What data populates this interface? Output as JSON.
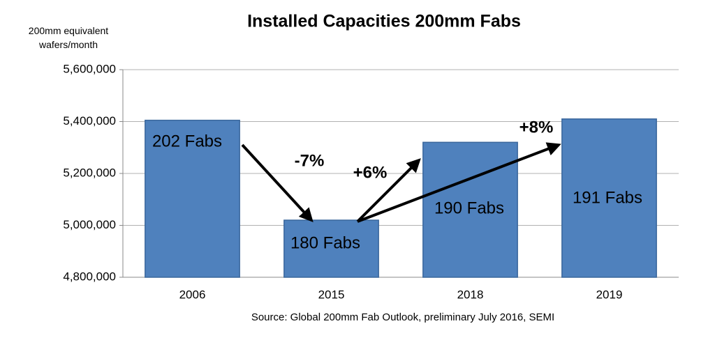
{
  "chart_data": {
    "type": "bar",
    "title": "Installed Capacities 200mm Fabs",
    "ylabel": "200mm equivalent wafers/month",
    "source": "Source: Global 200mm Fab Outlook, preliminary July 2016, SEMI",
    "categories": [
      "2006",
      "2015",
      "2018",
      "2019"
    ],
    "values": [
      5405000,
      5020000,
      5320000,
      5410000
    ],
    "bar_labels": [
      "202 Fabs",
      "180 Fabs",
      "190 Fabs",
      "191 Fabs"
    ],
    "annotations": [
      "-7%",
      "+6%",
      "+8%"
    ],
    "color": "#4f81bd",
    "ylim": [
      4800000,
      5600000
    ],
    "yticks": [
      {
        "value": 4800000,
        "label": "4,800,000"
      },
      {
        "value": 5000000,
        "label": "5,000,000"
      },
      {
        "value": 5200000,
        "label": "5,200,000"
      },
      {
        "value": 5400000,
        "label": "5,400,000"
      },
      {
        "value": 5600000,
        "label": "5,600,000"
      }
    ],
    "grid": true
  }
}
